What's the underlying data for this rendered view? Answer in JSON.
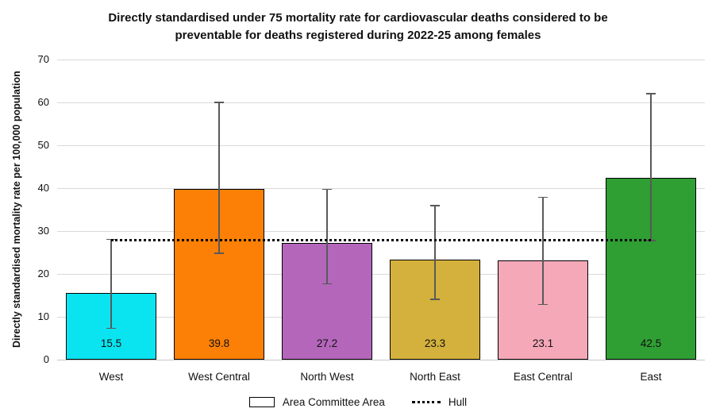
{
  "chart_data": {
    "type": "bar",
    "title": "Directly standardised under 75 mortality rate for cardiovascular deaths considered to be preventable for deaths registered during 2022-25 among females",
    "title_lines": [
      "Directly standardised under 75 mortality rate for cardiovascular deaths considered to be",
      "preventable for deaths registered during 2022-25 among females"
    ],
    "ylabel": "Directly standardised mortality rate per 100,000 population",
    "xlabel": "",
    "categories": [
      "West",
      "West Central",
      "North West",
      "North East",
      "East Central",
      "East"
    ],
    "values": [
      15.5,
      39.8,
      27.2,
      23.3,
      23.1,
      42.5
    ],
    "value_labels": [
      "15.5",
      "39.8",
      "27.2",
      "23.3",
      "23.1",
      "42.5"
    ],
    "error_low": [
      7.3,
      24.8,
      17.7,
      14.1,
      12.9,
      27.8
    ],
    "error_high": [
      28.1,
      60.0,
      39.7,
      35.9,
      37.9,
      62.0
    ],
    "reference_line": {
      "label": "Hull",
      "value": 27.9,
      "style": "dotted"
    },
    "ylim": [
      0,
      70
    ],
    "yticks": [
      0,
      10,
      20,
      30,
      40,
      50,
      60,
      70
    ],
    "grid": true,
    "legend": {
      "bar_label": "Area Committee Area",
      "line_label": "Hull",
      "position": "bottom"
    },
    "colors": {
      "bars": [
        "#0ae4f0",
        "#fb8005",
        "#b466bb",
        "#d4b13c",
        "#f5a8b8",
        "#2f9e33"
      ],
      "bar_border": "#000000",
      "error": "#595959",
      "grid": "#d9d9d9",
      "axis": "#c8c8c8",
      "reference": "#000000",
      "text": "#111111"
    }
  }
}
